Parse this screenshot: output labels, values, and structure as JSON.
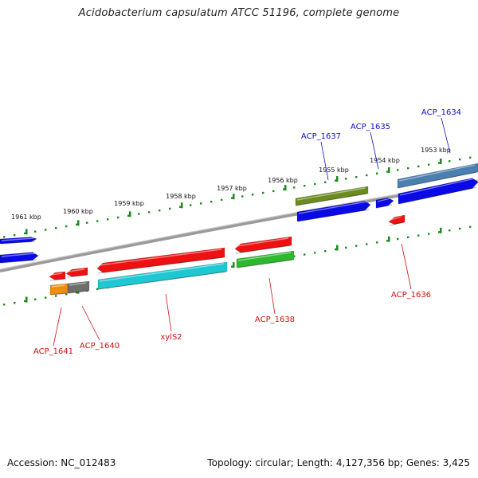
{
  "title": "Acidobacterium capsulatum ATCC 51196, complete genome",
  "footer": {
    "accession": "Accession: NC_012483",
    "summary": "Topology: circular; Length: 4,127,356 bp; Genes: 3,425"
  },
  "colors": {
    "backbone": "#808080",
    "tick_dots": "#1e8a1e",
    "label_forward": "#1010c8",
    "label_reverse": "#d01010",
    "red_gene": "#ee1111",
    "blue_gene": "#0a0ae6",
    "cyan_gene": "#1ec8d2",
    "green_gene": "#2db82d",
    "olive_gene": "#6b8c1e",
    "steel_gene": "#4a7fb0",
    "orange_gene": "#f08c14",
    "gray_gene": "#6e6e6e"
  },
  "ticks": [
    {
      "label": "1961 kbp"
    },
    {
      "label": "1960 kbp"
    },
    {
      "label": "1959 kbp"
    },
    {
      "label": "1958 kbp"
    },
    {
      "label": "1957 kbp"
    },
    {
      "label": "1956 kbp"
    },
    {
      "label": "1955 kbp"
    },
    {
      "label": "1954 kbp"
    },
    {
      "label": "1953 kbp"
    }
  ],
  "gene_labels": {
    "forward": [
      "ACP_1637",
      "ACP_1635",
      "ACP_1634"
    ],
    "reverse": [
      "ACP_1641",
      "ACP_1640",
      "xylS2",
      "ACP_1638",
      "ACP_1636"
    ]
  }
}
